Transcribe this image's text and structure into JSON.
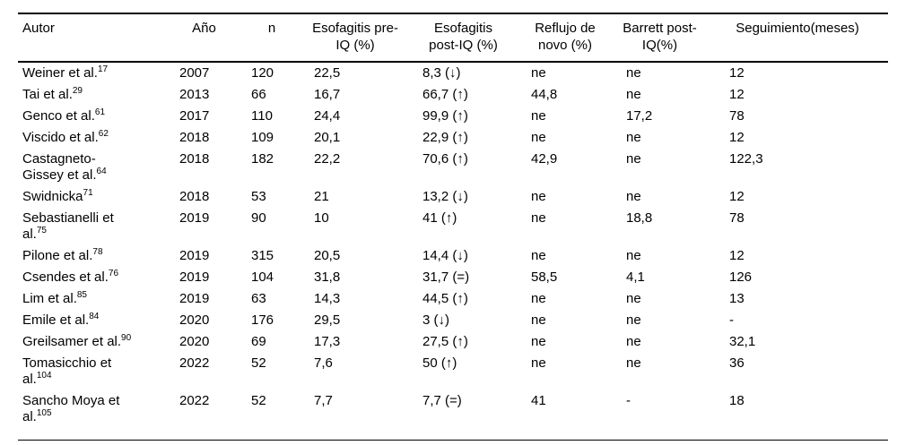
{
  "table": {
    "columns": [
      {
        "id": "autor",
        "label_lines": [
          "Autor"
        ]
      },
      {
        "id": "anio",
        "label_lines": [
          "Año"
        ]
      },
      {
        "id": "n",
        "label_lines": [
          "n"
        ]
      },
      {
        "id": "esofagitis_pre",
        "label_lines": [
          "Esofagitis pre-",
          "IQ (%)"
        ]
      },
      {
        "id": "esofagitis_post",
        "label_lines": [
          "Esofagitis",
          "post-IQ (%)"
        ]
      },
      {
        "id": "reflujo",
        "label_lines": [
          "Reflujo de",
          "novo (%)"
        ]
      },
      {
        "id": "barrett",
        "label_lines": [
          "Barrett post-",
          "IQ(%)"
        ]
      },
      {
        "id": "seguimiento",
        "label_lines": [
          "Seguimiento(meses)"
        ]
      }
    ],
    "rows": [
      {
        "autor": {
          "line1": "Weiner et al.",
          "line2": "",
          "ref": "17"
        },
        "cells": {
          "anio": "2007",
          "n": "120",
          "esofagitis_pre": "22,5",
          "esofagitis_post": "8,3 (↓)",
          "reflujo": "ne",
          "barrett": "ne",
          "seguimiento": "12"
        }
      },
      {
        "autor": {
          "line1": "Tai et al.",
          "line2": "",
          "ref": "29"
        },
        "cells": {
          "anio": "2013",
          "n": "66",
          "esofagitis_pre": "16,7",
          "esofagitis_post": "66,7 (↑)",
          "reflujo": "44,8",
          "barrett": "ne",
          "seguimiento": "12"
        }
      },
      {
        "autor": {
          "line1": "Genco et al.",
          "line2": "",
          "ref": "61"
        },
        "cells": {
          "anio": "2017",
          "n": "110",
          "esofagitis_pre": "24,4",
          "esofagitis_post": "99,9 (↑)",
          "reflujo": "ne",
          "barrett": "17,2",
          "seguimiento": "78"
        }
      },
      {
        "autor": {
          "line1": "Viscido et al.",
          "line2": "",
          "ref": "62"
        },
        "cells": {
          "anio": "2018",
          "n": "109",
          "esofagitis_pre": "20,1",
          "esofagitis_post": "22,9 (↑)",
          "reflujo": "ne",
          "barrett": "ne",
          "seguimiento": "12"
        }
      },
      {
        "autor": {
          "line1": "Castagneto-",
          "line2": "Gissey et al.",
          "ref": "64"
        },
        "cells": {
          "anio": "2018",
          "n": "182",
          "esofagitis_pre": "22,2",
          "esofagitis_post": "70,6 (↑)",
          "reflujo": "42,9",
          "barrett": "ne",
          "seguimiento": "122,3"
        }
      },
      {
        "autor": {
          "line1": "Swidnicka",
          "line2": "",
          "ref": "71"
        },
        "cells": {
          "anio": "2018",
          "n": "53",
          "esofagitis_pre": "21",
          "esofagitis_post": "13,2 (↓)",
          "reflujo": "ne",
          "barrett": "ne",
          "seguimiento": "12"
        }
      },
      {
        "autor": {
          "line1": "Sebastianelli et",
          "line2": "al.",
          "ref": "75"
        },
        "cells": {
          "anio": "2019",
          "n": "90",
          "esofagitis_pre": "10",
          "esofagitis_post": "41 (↑)",
          "reflujo": "ne",
          "barrett": "18,8",
          "seguimiento": "78"
        }
      },
      {
        "autor": {
          "line1": "Pilone et al.",
          "line2": "",
          "ref": "78"
        },
        "cells": {
          "anio": "2019",
          "n": "315",
          "esofagitis_pre": "20,5",
          "esofagitis_post": "14,4 (↓)",
          "reflujo": "ne",
          "barrett": "ne",
          "seguimiento": "12"
        }
      },
      {
        "autor": {
          "line1": "Csendes et al.",
          "line2": "",
          "ref": "76"
        },
        "cells": {
          "anio": "2019",
          "n": "104",
          "esofagitis_pre": "31,8",
          "esofagitis_post": "31,7 (=)",
          "reflujo": "58,5",
          "barrett": "4,1",
          "seguimiento": "126"
        }
      },
      {
        "autor": {
          "line1": "Lim et al.",
          "line2": "",
          "ref": "85"
        },
        "cells": {
          "anio": "2019",
          "n": "63",
          "esofagitis_pre": "14,3",
          "esofagitis_post": "44,5 (↑)",
          "reflujo": "ne",
          "barrett": "ne",
          "seguimiento": "13"
        }
      },
      {
        "autor": {
          "line1": "Emile et al.",
          "line2": "",
          "ref": "84"
        },
        "cells": {
          "anio": "2020",
          "n": "176",
          "esofagitis_pre": "29,5",
          "esofagitis_post": "3 (↓)",
          "reflujo": "ne",
          "barrett": "ne",
          "seguimiento": "-"
        }
      },
      {
        "autor": {
          "line1": "Greilsamer et al.",
          "line2": "",
          "ref": "90"
        },
        "cells": {
          "anio": "2020",
          "n": "69",
          "esofagitis_pre": "17,3",
          "esofagitis_post": "27,5 (↑)",
          "reflujo": "ne",
          "barrett": "ne",
          "seguimiento": "32,1"
        }
      },
      {
        "autor": {
          "line1": "Tomasicchio et",
          "line2": "al.",
          "ref": "104"
        },
        "cells": {
          "anio": "2022",
          "n": "52",
          "esofagitis_pre": "7,6",
          "esofagitis_post": "50 (↑)",
          "reflujo": "ne",
          "barrett": "ne",
          "seguimiento": "36"
        }
      },
      {
        "autor": {
          "line1": "Sancho Moya et",
          "line2": "al.",
          "ref": "105"
        },
        "cells": {
          "anio": "2022",
          "n": "52",
          "esofagitis_pre": "7,7",
          "esofagitis_post": "7,7 (=)",
          "reflujo": "41",
          "barrett": "-",
          "seguimiento": "18"
        }
      }
    ]
  }
}
